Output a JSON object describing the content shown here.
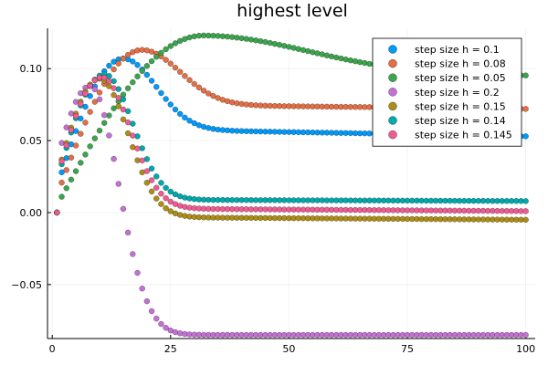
{
  "chart_data": {
    "type": "scatter",
    "title": "highest level",
    "xlabel": "",
    "ylabel": "",
    "xlim": [
      -1,
      102
    ],
    "ylim": [
      -0.0875,
      0.128
    ],
    "xticks": [
      0,
      25,
      50,
      75,
      100
    ],
    "xtick_labels": [
      "0",
      "25",
      "50",
      "75",
      "100"
    ],
    "yticks": [
      -0.05,
      0.0,
      0.05,
      0.1
    ],
    "ytick_labels": [
      "−0.05",
      "0.00",
      "0.05",
      "0.10"
    ],
    "grid": true,
    "legend_position": "top-right",
    "x": [
      1,
      100
    ],
    "series": [
      {
        "name": "step size h = 0.1",
        "color": "#009AFA",
        "y0": 0.0,
        "start": 0.018,
        "peak": 0.107,
        "peak_x": 15,
        "end": 0.053,
        "plateau": 0.058,
        "decay": 7
      },
      {
        "name": "step size h = 0.08",
        "color": "#E26F46",
        "y0": 0.0,
        "start": 0.012,
        "peak": 0.113,
        "peak_x": 19,
        "end": 0.072,
        "plateau": 0.075,
        "decay": 8
      },
      {
        "name": "step size h = 0.05",
        "color": "#3DA44E",
        "y0": 0.0,
        "start": 0.005,
        "peak": 0.123,
        "peak_x": 32,
        "end": 0.095,
        "plateau": 0.097,
        "decay": 22
      },
      {
        "name": "step size h = 0.2",
        "color": "#C371D2",
        "y0": 0.0,
        "start": 0.037,
        "peak": 0.088,
        "peak_x": 8,
        "end": -0.085,
        "plateau": -0.085,
        "decay": 6
      },
      {
        "name": "step size h = 0.15",
        "color": "#AC8D18",
        "y0": 0.0,
        "start": 0.025,
        "peak": 0.093,
        "peak_x": 10,
        "end": -0.005,
        "plateau": -0.003,
        "decay": 6
      },
      {
        "name": "step size h = 0.14",
        "color": "#00A9AD",
        "y0": 0.0,
        "start": 0.022,
        "peak": 0.096,
        "peak_x": 11,
        "end": 0.008,
        "plateau": 0.009,
        "decay": 6
      },
      {
        "name": "step size h = 0.145",
        "color": "#ED5D92",
        "y0": 0.0,
        "start": 0.024,
        "peak": 0.094,
        "peak_x": 10.5,
        "end": 0.001,
        "plateau": 0.003,
        "decay": 6
      }
    ]
  }
}
